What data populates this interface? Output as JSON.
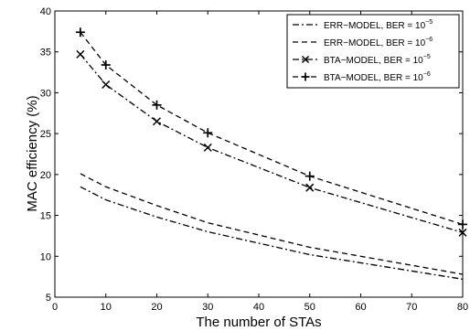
{
  "chart_data": {
    "type": "line",
    "title": "",
    "xlabel": "The number of STAs",
    "ylabel": "MAC efficiency (%)",
    "xlim": [
      0,
      80
    ],
    "ylim": [
      5,
      40
    ],
    "xticks": [
      0,
      10,
      20,
      30,
      40,
      50,
      60,
      70,
      80
    ],
    "yticks": [
      5,
      10,
      15,
      20,
      25,
      30,
      35,
      40
    ],
    "grid": false,
    "legend_position": "top-right",
    "x": [
      5,
      10,
      20,
      30,
      50,
      80
    ],
    "series": [
      {
        "name": "ERR−MODEL, BER = 10",
        "name_exponent": "−5",
        "line_style": "dashdot",
        "marker": "none",
        "values": [
          18.5,
          16.9,
          14.8,
          13.0,
          10.2,
          7.2
        ]
      },
      {
        "name": "ERR−MODEL, BER = 10",
        "name_exponent": "−6",
        "line_style": "dashed",
        "marker": "none",
        "values": [
          20.1,
          18.5,
          16.2,
          14.1,
          11.1,
          7.8
        ]
      },
      {
        "name": "BTA−MODEL, BER = 10",
        "name_exponent": "−5",
        "line_style": "dashdot",
        "marker": "x",
        "values": [
          34.7,
          31.0,
          26.5,
          23.3,
          18.4,
          12.9
        ]
      },
      {
        "name": "BTA−MODEL, BER = 10",
        "name_exponent": "−6",
        "line_style": "dashed",
        "marker": "plus",
        "values": [
          37.4,
          33.4,
          28.5,
          25.1,
          19.8,
          13.9
        ]
      }
    ]
  }
}
